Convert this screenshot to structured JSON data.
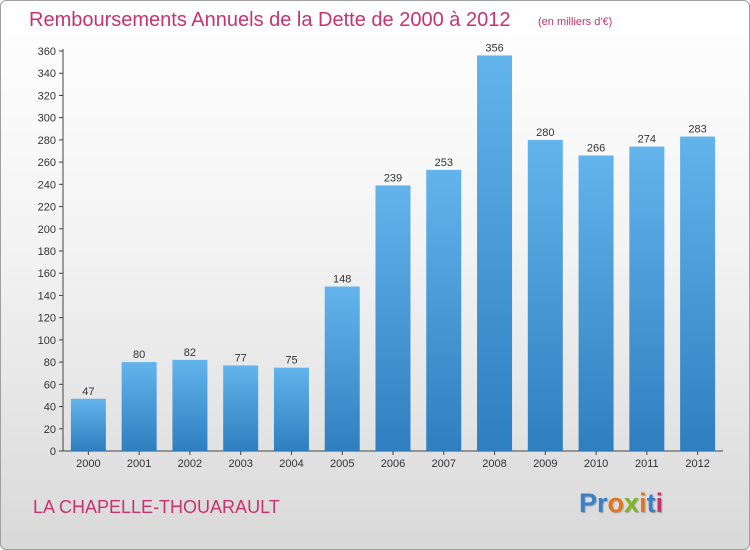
{
  "title": "Remboursements Annuels de la Dette de 2000 à 2012",
  "subtitle": "(en milliers d'€)",
  "place": "LA CHAPELLE-THOUARAULT",
  "logo": {
    "letters": [
      "P",
      "r",
      "o",
      "x",
      "i",
      "t",
      "i"
    ],
    "colors": [
      "#3a7fc8",
      "#3a7fc8",
      "#e2761f",
      "#7fb525",
      "#e2761f",
      "#3a7fc8",
      "#c8336e"
    ]
  },
  "colors": {
    "bar_top": "#63b3ec",
    "bar_bottom": "#2f7fc0",
    "title": "#c8336e"
  },
  "chart_data": {
    "type": "bar",
    "categories": [
      "2000",
      "2001",
      "2002",
      "2003",
      "2004",
      "2005",
      "2006",
      "2007",
      "2008",
      "2009",
      "2010",
      "2011",
      "2012"
    ],
    "values": [
      47,
      80,
      82,
      77,
      75,
      148,
      239,
      253,
      356,
      280,
      266,
      274,
      283
    ],
    "title": "Remboursements Annuels de la Dette de 2000 à 2012",
    "subtitle": "(en milliers d'€)",
    "xlabel": "",
    "ylabel": "",
    "ylim": [
      0,
      360
    ],
    "yticks": [
      0,
      20,
      40,
      60,
      80,
      100,
      120,
      140,
      160,
      180,
      200,
      220,
      240,
      260,
      280,
      300,
      320,
      340,
      360
    ],
    "grid": false,
    "legend": "none"
  }
}
